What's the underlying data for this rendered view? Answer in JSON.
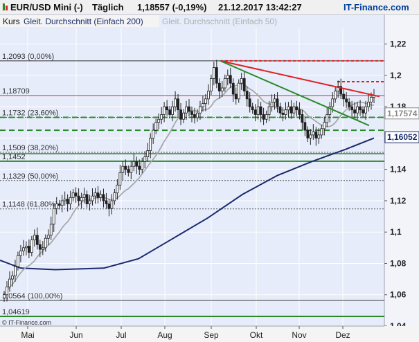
{
  "header": {
    "symbol": "EUR/USD Mini (-)",
    "interval": "Täglich",
    "price": "1,18557 (-0,19%)",
    "datetime": "21.12.2017 13:42:27",
    "brand": "IT-Finance.com"
  },
  "legend": {
    "kurs": "Kurs",
    "sma200": "Gleit. Durchschnitt (Einfach 200)",
    "sma50": "Gleit. Durchschnitt (Einfach 50)"
  },
  "copyright": "© IT-Finance.com",
  "colors": {
    "candle": "#202020",
    "sma200": "#1a2a6c",
    "sma50": "#a8a8a8",
    "resistance": "#e02020",
    "support": "#2a8a2a",
    "plot_bg": "#e6ecfa"
  },
  "chart_data": {
    "type": "candlestick",
    "ylim": [
      1.04,
      1.23
    ],
    "yticks": [
      {
        "value": 1.22,
        "label": "1,22",
        "bold": false
      },
      {
        "value": 1.2,
        "label": "1,2",
        "bold": true
      },
      {
        "value": 1.18,
        "label": "1,18",
        "bold": false
      },
      {
        "value": 1.16,
        "label": "1,16",
        "bold": false
      },
      {
        "value": 1.14,
        "label": "1,14",
        "bold": false
      },
      {
        "value": 1.12,
        "label": "1,12",
        "bold": false
      },
      {
        "value": 1.1,
        "label": "1,1",
        "bold": true
      },
      {
        "value": 1.08,
        "label": "1,08",
        "bold": false
      },
      {
        "value": 1.06,
        "label": "1,06",
        "bold": false
      },
      {
        "value": 1.04,
        "label": "1,04",
        "bold": false
      }
    ],
    "months": [
      "Mai",
      "Jun",
      "Jul",
      "Aug",
      "Sep",
      "Okt",
      "Nov",
      "Dez"
    ],
    "price_labels": [
      {
        "value": 1.17574,
        "label": "1,17574",
        "color": "#888888"
      },
      {
        "value": 1.16052,
        "label": "1,16052",
        "color": "#1a2a6c"
      }
    ],
    "fib_levels": [
      {
        "value": 1.2093,
        "label": "1,2093 (0,00%)",
        "color": "#333333",
        "style": "solid"
      },
      {
        "value": 1.18709,
        "label": "1,18709",
        "color": "#e02020",
        "style": "solid"
      },
      {
        "value": 1.1732,
        "label": "1,1732 (23,60%)",
        "color": "#555555",
        "style": "dotted"
      },
      {
        "value": 1.1509,
        "label": "1,1509 (38,20%)",
        "color": "#555555",
        "style": "dotted"
      },
      {
        "value": 1.1452,
        "label": "1,1452",
        "color": "#2a8a2a",
        "style": "solid"
      },
      {
        "value": 1.1329,
        "label": "1,1329 (50,00%)",
        "color": "#555555",
        "style": "dotted"
      },
      {
        "value": 1.1148,
        "label": "1,1148 (61,80%)",
        "color": "#555555",
        "style": "dotted"
      },
      {
        "value": 1.0564,
        "label": "1,0564 (100,00%)",
        "color": "#333333",
        "style": "solid"
      },
      {
        "value": 1.04619,
        "label": "1,04619",
        "color": "#2a8a2a",
        "style": "solid"
      }
    ],
    "closes": [
      1.06,
      1.065,
      1.07,
      1.072,
      1.078,
      1.085,
      1.088,
      1.09,
      1.091,
      1.087,
      1.095,
      1.098,
      1.092,
      1.089,
      1.09,
      1.096,
      1.098,
      1.105,
      1.115,
      1.118,
      1.117,
      1.12,
      1.121,
      1.118,
      1.122,
      1.125,
      1.123,
      1.12,
      1.122,
      1.124,
      1.118,
      1.12,
      1.123,
      1.125,
      1.122,
      1.124,
      1.12,
      1.118,
      1.115,
      1.12,
      1.125,
      1.13,
      1.138,
      1.142,
      1.14,
      1.138,
      1.142,
      1.145,
      1.142,
      1.14,
      1.145,
      1.148,
      1.152,
      1.16,
      1.165,
      1.17,
      1.172,
      1.175,
      1.18,
      1.178,
      1.175,
      1.18,
      1.185,
      1.178,
      1.172,
      1.176,
      1.18,
      1.177,
      1.175,
      1.173,
      1.176,
      1.18,
      1.182,
      1.185,
      1.19,
      1.198,
      1.205,
      1.195,
      1.19,
      1.192,
      1.198,
      1.2,
      1.195,
      1.188,
      1.185,
      1.195,
      1.198,
      1.19,
      1.185,
      1.18,
      1.178,
      1.175,
      1.18,
      1.175,
      1.172,
      1.175,
      1.18,
      1.183,
      1.185,
      1.18,
      1.176,
      1.175,
      1.178,
      1.18,
      1.176,
      1.18,
      1.178,
      1.175,
      1.17,
      1.165,
      1.16,
      1.162,
      1.164,
      1.16,
      1.162,
      1.166,
      1.17,
      1.175,
      1.18,
      1.185,
      1.19,
      1.193,
      1.188,
      1.185,
      1.183,
      1.18,
      1.178,
      1.176,
      1.18,
      1.178,
      1.176,
      1.18,
      1.183,
      1.186,
      1.187
    ]
  }
}
